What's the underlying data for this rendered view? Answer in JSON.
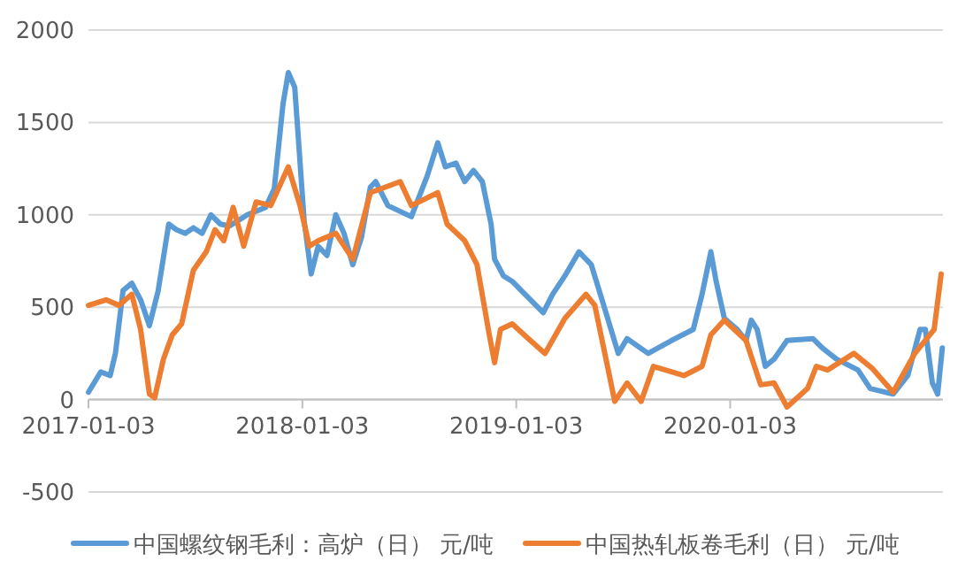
{
  "chart_data": {
    "type": "line",
    "xlim": [
      "2017-01-03",
      "2020-12-31"
    ],
    "xticks": [
      "2017-01-03",
      "2018-01-03",
      "2019-01-03",
      "2020-01-03"
    ],
    "ylim": [
      -500,
      2000
    ],
    "yticks": [
      -500,
      0,
      500,
      1000,
      1500,
      2000
    ],
    "grid": "y",
    "legend": "bottom",
    "marker": "none",
    "line_style": "solid",
    "series": [
      {
        "name": "中国螺纹钢毛利：高炉（日） 元/吨",
        "color": "#5b9bd5",
        "x": [
          "2017-01-03",
          "2017-01-24",
          "2017-02-09",
          "2017-02-18",
          "2017-03-03",
          "2017-03-18",
          "2017-04-02",
          "2017-04-17",
          "2017-05-02",
          "2017-05-20",
          "2017-06-02",
          "2017-06-17",
          "2017-07-01",
          "2017-07-16",
          "2017-07-31",
          "2017-08-16",
          "2017-09-01",
          "2017-10-01",
          "2017-11-01",
          "2017-11-16",
          "2017-12-01",
          "2017-12-10",
          "2017-12-21",
          "2018-01-06",
          "2018-01-18",
          "2018-01-30",
          "2018-02-14",
          "2018-03-01",
          "2018-03-15",
          "2018-03-30",
          "2018-04-14",
          "2018-04-29",
          "2018-05-08",
          "2018-05-29",
          "2018-07-08",
          "2018-08-04",
          "2018-08-22",
          "2018-09-04",
          "2018-09-22",
          "2018-10-07",
          "2018-10-22",
          "2018-11-06",
          "2018-11-21",
          "2018-11-27",
          "2018-12-12",
          "2018-12-27",
          "2019-01-18",
          "2019-02-18",
          "2019-03-06",
          "2019-03-27",
          "2019-04-20",
          "2019-05-11",
          "2019-06-05",
          "2019-06-26",
          "2019-07-11",
          "2019-08-16",
          "2019-09-25",
          "2019-11-01",
          "2019-11-16",
          "2019-12-01",
          "2019-12-10",
          "2019-12-24",
          "2020-01-15",
          "2020-01-30",
          "2020-02-08",
          "2020-02-18",
          "2020-03-03",
          "2020-03-18",
          "2020-04-09",
          "2020-05-23",
          "2020-06-08",
          "2020-07-02",
          "2020-08-08",
          "2020-08-29",
          "2020-10-07",
          "2020-11-01",
          "2020-11-22",
          "2020-12-01",
          "2020-12-13",
          "2020-12-22",
          "2020-12-30"
        ],
        "values": [
          40,
          150,
          130,
          250,
          590,
          630,
          540,
          400,
          590,
          950,
          920,
          900,
          930,
          900,
          1000,
          950,
          940,
          1000,
          1040,
          1140,
          1600,
          1770,
          1690,
          970,
          680,
          830,
          780,
          1000,
          900,
          730,
          880,
          1150,
          1180,
          1050,
          990,
          1210,
          1390,
          1260,
          1280,
          1180,
          1240,
          1180,
          950,
          760,
          670,
          640,
          570,
          470,
          570,
          670,
          800,
          730,
          470,
          250,
          330,
          250,
          320,
          380,
          570,
          800,
          640,
          440,
          380,
          320,
          430,
          380,
          180,
          220,
          320,
          330,
          280,
          220,
          160,
          60,
          30,
          130,
          380,
          380,
          90,
          30,
          280
        ]
      },
      {
        "name": "中国热轧板卷毛利（日） 元/吨",
        "color": "#ed7d31",
        "x": [
          "2017-01-03",
          "2017-02-02",
          "2017-02-24",
          "2017-03-18",
          "2017-04-02",
          "2017-04-17",
          "2017-04-26",
          "2017-05-11",
          "2017-05-26",
          "2017-06-11",
          "2017-07-01",
          "2017-07-23",
          "2017-08-07",
          "2017-08-22",
          "2017-09-07",
          "2017-09-25",
          "2017-10-16",
          "2017-11-10",
          "2017-12-10",
          "2017-12-30",
          "2018-01-15",
          "2018-01-30",
          "2018-03-01",
          "2018-03-30",
          "2018-04-29",
          "2018-06-19",
          "2018-07-08",
          "2018-08-22",
          "2018-09-07",
          "2018-10-07",
          "2018-10-28",
          "2018-11-18",
          "2018-11-27",
          "2018-12-07",
          "2018-12-27",
          "2019-01-27",
          "2019-02-21",
          "2019-03-27",
          "2019-05-02",
          "2019-05-17",
          "2019-06-05",
          "2019-06-20",
          "2019-07-11",
          "2019-08-04",
          "2019-08-25",
          "2019-10-16",
          "2019-11-16",
          "2019-12-01",
          "2019-12-24",
          "2020-01-30",
          "2020-02-24",
          "2020-03-18",
          "2020-04-09",
          "2020-05-14",
          "2020-05-29",
          "2020-06-17",
          "2020-08-01",
          "2020-09-01",
          "2020-10-07",
          "2020-11-13",
          "2020-12-16",
          "2020-12-28"
        ],
        "values": [
          510,
          540,
          510,
          570,
          380,
          30,
          10,
          220,
          350,
          410,
          700,
          800,
          920,
          860,
          1040,
          830,
          1070,
          1050,
          1260,
          1050,
          830,
          860,
          900,
          760,
          1120,
          1180,
          1050,
          1120,
          950,
          860,
          730,
          350,
          200,
          380,
          410,
          320,
          250,
          440,
          570,
          510,
          220,
          -10,
          90,
          -10,
          180,
          130,
          180,
          350,
          430,
          320,
          80,
          90,
          -40,
          60,
          180,
          160,
          250,
          170,
          40,
          250,
          380,
          680
        ]
      }
    ]
  }
}
